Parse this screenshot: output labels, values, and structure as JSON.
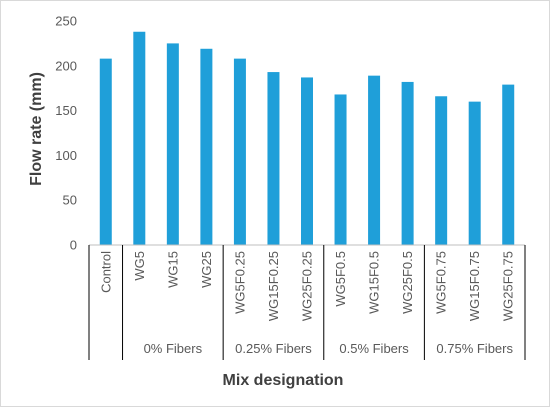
{
  "chart_data": {
    "type": "bar",
    "title": "",
    "xlabel": "Mix designation",
    "ylabel": "Flow rate (mm)",
    "ylim": [
      0,
      250
    ],
    "yticks": [
      0,
      50,
      100,
      150,
      200,
      250
    ],
    "grid": false,
    "legend": "none",
    "bar_color": "#1f9fd9",
    "categories": [
      "Control",
      "WG5",
      "WG15",
      "WG25",
      "WG5F0.25",
      "WG15F0.25",
      "WG25F0.25",
      "WG5F0.5",
      "WG15F0.5",
      "WG25F0.5",
      "WG5F0.75",
      "WG15F0.75",
      "WG25F0.75"
    ],
    "values": [
      208,
      238,
      225,
      219,
      208,
      193,
      187,
      168,
      189,
      182,
      166,
      160,
      179
    ],
    "groups": [
      {
        "label": "",
        "count": 1
      },
      {
        "label": "0% Fibers",
        "count": 3
      },
      {
        "label": "0.25% Fibers",
        "count": 3
      },
      {
        "label": "0.5% Fibers",
        "count": 3
      },
      {
        "label": "0.75% Fibers",
        "count": 3
      }
    ]
  }
}
